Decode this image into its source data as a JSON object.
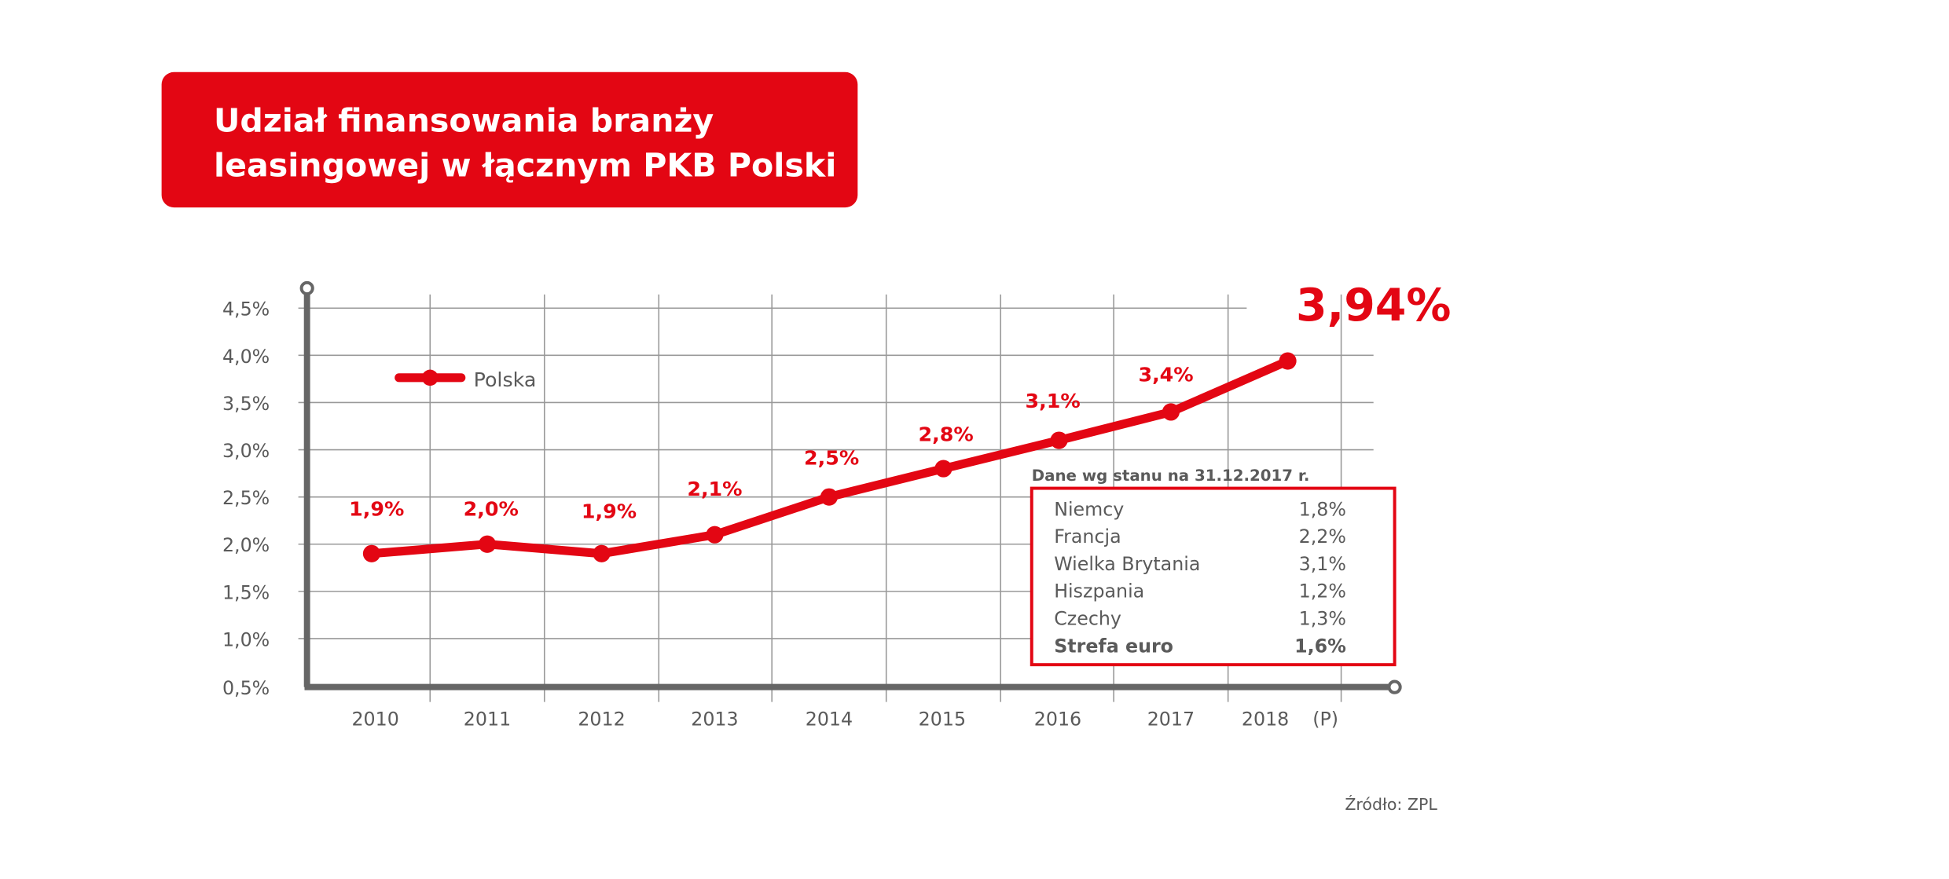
{
  "title": {
    "line1": "Udział finansowania branży",
    "line2": "leasingowej w łącznym PKB Polski"
  },
  "colors": {
    "accent": "#e30613",
    "axis": "#666666",
    "grid": "#999999",
    "text": "#5a5a5a"
  },
  "chart_data": {
    "type": "line",
    "title": "Udział finansowania branży leasingowej w łącznym PKB Polski",
    "categories": [
      "2010",
      "2011",
      "2012",
      "2013",
      "2014",
      "2015",
      "2016",
      "2017",
      "2018"
    ],
    "forecast_marker": "(P)",
    "series": [
      {
        "name": "Polska",
        "values": [
          1.9,
          2.0,
          1.9,
          2.1,
          2.5,
          2.8,
          3.1,
          3.4,
          3.94
        ]
      }
    ],
    "data_labels": [
      "1,9%",
      "2,0%",
      "1,9%",
      "2,1%",
      "2,5%",
      "2,8%",
      "3,1%",
      "3,4%",
      "3,94%"
    ],
    "y_ticks": [
      "0,5%",
      "1,0%",
      "1,5%",
      "2,0%",
      "2,5%",
      "3,0%",
      "3,5%",
      "4,0%",
      "4,5%"
    ],
    "ylim": [
      0.5,
      4.5
    ],
    "grid": true,
    "legend_position": "top-left"
  },
  "comparison": {
    "header": "Dane wg stanu na 31.12.2017 r.",
    "rows": [
      {
        "country": "Niemcy",
        "value": "1,8%"
      },
      {
        "country": "Francja",
        "value": "2,2%"
      },
      {
        "country": "Wielka Brytania",
        "value": "3,1%"
      },
      {
        "country": "Hiszpania",
        "value": "1,2%"
      },
      {
        "country": "Czechy",
        "value": "1,3%"
      },
      {
        "country": "Strefa euro",
        "value": "1,6%",
        "bold": true
      }
    ]
  },
  "source": "Źródło: ZPL"
}
